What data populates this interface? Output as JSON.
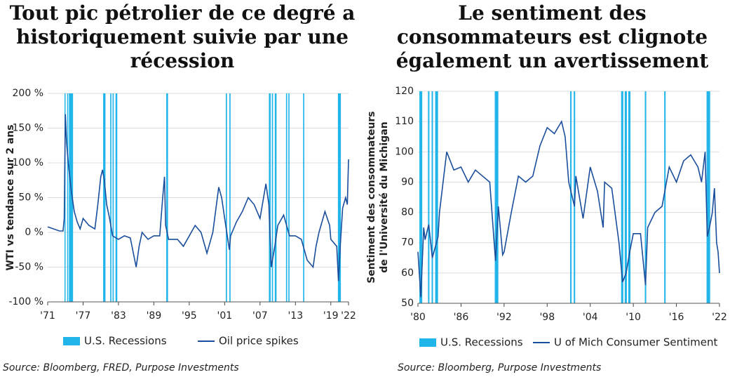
{
  "chart_data": [
    {
      "type": "line",
      "title": "Tout pic pétrolier de ce degré a historiquement suivie par une récession",
      "ylabel": [
        "WTI vs tendance sur 2 ans"
      ],
      "xlim": [
        1971,
        2022
      ],
      "xticks": [
        {
          "value": 1971,
          "label": "'71"
        },
        {
          "value": 1977,
          "label": "'77"
        },
        {
          "value": 1983,
          "label": "'83"
        },
        {
          "value": 1989,
          "label": "'89"
        },
        {
          "value": 1995,
          "label": "'95"
        },
        {
          "value": 2001,
          "label": "'01"
        },
        {
          "value": 2007,
          "label": "'07"
        },
        {
          "value": 2013,
          "label": "'13"
        },
        {
          "value": 2019,
          "label": "'19"
        },
        {
          "value": 2022,
          "label": "'22"
        }
      ],
      "ylim": [
        -100,
        200
      ],
      "yticks": [
        {
          "value": -100,
          "label": "-100 %"
        },
        {
          "value": -50,
          "label": "-50 %"
        },
        {
          "value": 0,
          "label": "0 %"
        },
        {
          "value": 50,
          "label": "50 %"
        },
        {
          "value": 100,
          "label": "100 %"
        },
        {
          "value": 150,
          "label": "150 %"
        },
        {
          "value": 200,
          "label": "200 %"
        }
      ],
      "grid": true,
      "series": [
        {
          "name": "U.S. Recessions",
          "type": "band",
          "color": "#22b5ea",
          "intervals": [
            [
              1973.85,
              1974.0
            ],
            [
              1974.3,
              1974.4
            ],
            [
              1974.6,
              1975.3
            ],
            [
              1980.4,
              1980.8
            ],
            [
              1981.6,
              1981.8
            ],
            [
              1982.0,
              1982.2
            ],
            [
              1982.5,
              1982.8
            ],
            [
              1991.1,
              1991.4
            ],
            [
              2001.2,
              2001.4
            ],
            [
              2001.8,
              2002.0
            ],
            [
              2008.5,
              2008.8
            ],
            [
              2009.0,
              2009.2
            ],
            [
              2009.5,
              2009.8
            ],
            [
              2011.4,
              2011.6
            ],
            [
              2011.8,
              2012.0
            ],
            [
              2014.3,
              2014.5
            ],
            [
              2020.2,
              2020.7
            ]
          ]
        },
        {
          "name": "Oil price spikes",
          "type": "line",
          "color": "#1a4e9c",
          "x": [
            1971,
            1973,
            1973.6,
            1973.8,
            1974.0,
            1974.2,
            1974.5,
            1975,
            1975.5,
            1976,
            1976.5,
            1977,
            1978,
            1979,
            1979.5,
            1980,
            1980.3,
            1980.6,
            1981,
            1981.5,
            1982,
            1983,
            1984,
            1985,
            1986,
            1986.5,
            1987,
            1988,
            1989,
            1990,
            1990.5,
            1990.8,
            1991,
            1991.5,
            1993,
            1994,
            1996,
            1997,
            1998,
            1999,
            2000,
            2000.5,
            2001,
            2001.8,
            2002,
            2003,
            2004,
            2005,
            2006,
            2007,
            2008,
            2008.5,
            2008.9,
            2009.5,
            2010,
            2011,
            2011.5,
            2012,
            2013,
            2014,
            2015,
            2016,
            2016.5,
            2017,
            2018,
            2018.8,
            2019,
            2020,
            2020.3,
            2020.6,
            2021,
            2021.5,
            2021.8,
            2022
          ],
          "values": [
            8,
            2,
            2,
            20,
            170,
            130,
            100,
            60,
            30,
            15,
            5,
            20,
            10,
            5,
            40,
            80,
            90,
            75,
            40,
            20,
            -5,
            -10,
            -5,
            -8,
            -50,
            -20,
            0,
            -10,
            -5,
            -5,
            50,
            80,
            10,
            -10,
            -10,
            -20,
            10,
            0,
            -30,
            0,
            65,
            50,
            20,
            -25,
            -5,
            15,
            30,
            50,
            40,
            20,
            70,
            40,
            -50,
            -20,
            10,
            25,
            10,
            -5,
            -5,
            -10,
            -40,
            -50,
            -20,
            0,
            30,
            10,
            -10,
            -20,
            -70,
            -20,
            35,
            50,
            40,
            105
          ]
        }
      ],
      "source": "Source: Bloomberg, FRED, Purpose Investments"
    },
    {
      "type": "line",
      "title": "Le sentiment des consommateurs est clignote également un avertissement",
      "ylabel": [
        "Sentiment des consommateurs",
        "de l'Université du Michigan"
      ],
      "xlim": [
        1980,
        2022
      ],
      "xticks": [
        {
          "value": 1980,
          "label": "'80"
        },
        {
          "value": 1986,
          "label": "'86"
        },
        {
          "value": 1992,
          "label": "'92"
        },
        {
          "value": 1998,
          "label": "'98"
        },
        {
          "value": 2004,
          "label": "'04"
        },
        {
          "value": 2010,
          "label": "'10"
        },
        {
          "value": 2016,
          "label": "'16"
        },
        {
          "value": 2022,
          "label": "'22"
        }
      ],
      "ylim": [
        50,
        120
      ],
      "yticks": [
        50,
        60,
        70,
        80,
        90,
        100,
        110,
        120
      ],
      "grid": true,
      "series": [
        {
          "name": "U.S. Recessions",
          "type": "band",
          "color": "#22b5ea",
          "intervals": [
            [
              1980.2,
              1980.6
            ],
            [
              1981.4,
              1981.6
            ],
            [
              1981.9,
              1982.1
            ],
            [
              1982.4,
              1982.8
            ],
            [
              1990.7,
              1991.2
            ],
            [
              2001.2,
              2001.4
            ],
            [
              2001.7,
              2001.9
            ],
            [
              2008.3,
              2008.6
            ],
            [
              2008.8,
              2009.1
            ],
            [
              2009.3,
              2009.6
            ],
            [
              2011.6,
              2011.8
            ],
            [
              2014.3,
              2014.5
            ],
            [
              2020.2,
              2020.7
            ]
          ]
        },
        {
          "name": "U of Mich Consumer Sentiment",
          "type": "line",
          "color": "#1a4e9c",
          "x": [
            1980,
            1980.4,
            1980.8,
            1981,
            1981.5,
            1982,
            1982.8,
            1983,
            1984,
            1985,
            1986,
            1987,
            1988,
            1989,
            1990,
            1990.8,
            1991.2,
            1991.8,
            1992,
            1993,
            1994,
            1995,
            1996,
            1997,
            1998,
            1999,
            2000,
            2000.5,
            2001,
            2001.8,
            2002,
            2003,
            2004,
            2005,
            2005.8,
            2006,
            2007,
            2008,
            2008.5,
            2009,
            2009.5,
            2010,
            2011,
            2011.7,
            2012,
            2013,
            2014,
            2015,
            2016,
            2017,
            2018,
            2019,
            2019.5,
            2020,
            2020.3,
            2020.6,
            2021,
            2021.3,
            2021.6,
            2021.8,
            2022
          ],
          "values": [
            67,
            52,
            75,
            71,
            76,
            65,
            72,
            80,
            100,
            94,
            95,
            90,
            94,
            92,
            90,
            64,
            82,
            66,
            67,
            80,
            92,
            90,
            92,
            102,
            108,
            106,
            110,
            105,
            90,
            82,
            92,
            78,
            95,
            87,
            75,
            90,
            88,
            70,
            57,
            60,
            67,
            73,
            73,
            56,
            75,
            80,
            82,
            95,
            90,
            97,
            99,
            95,
            90,
            100,
            72,
            75,
            80,
            88,
            70,
            67,
            60
          ]
        }
      ],
      "source": "Source: Bloomberg, Purpose Investments"
    }
  ]
}
